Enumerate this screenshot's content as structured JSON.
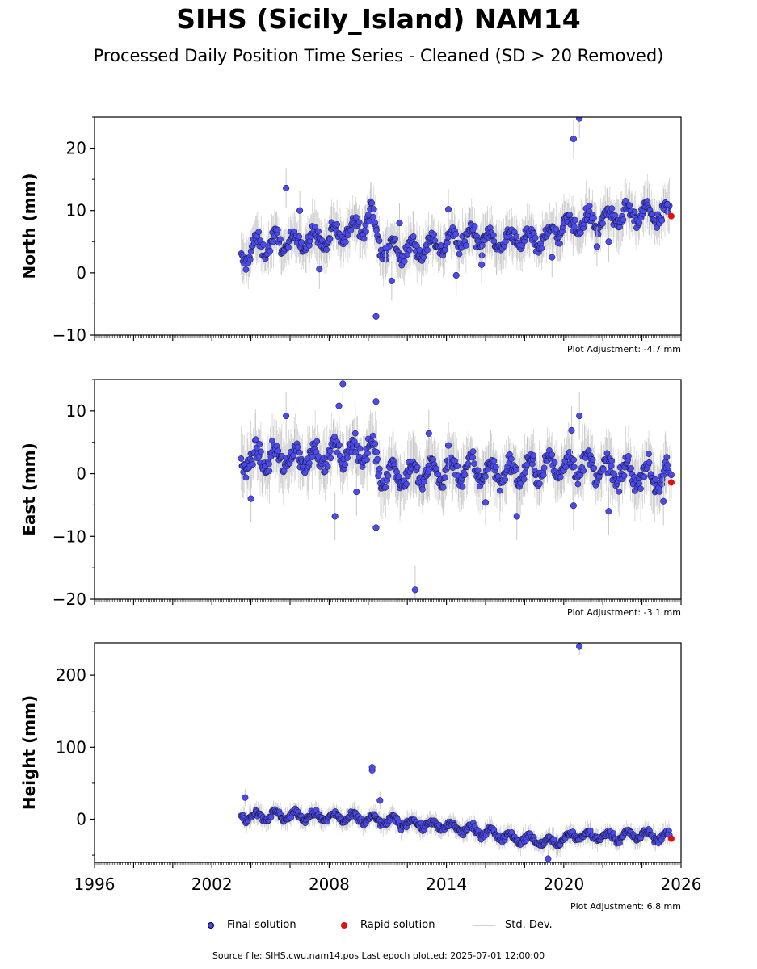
{
  "header": {
    "title": "SIHS (Sicily_Island) NAM14",
    "subtitle": "Processed Daily Position Time Series - Cleaned (SD > 20 Removed)"
  },
  "legend": {
    "final_label": "Final solution",
    "rapid_label": "Rapid solution",
    "std_label": "Std. Dev."
  },
  "footer": {
    "text": "Source file: SIHS.cwu.nam14.pos  Last epoch plotted: 2025-07-01 12:00:00"
  },
  "colors": {
    "final": "#4a4af0",
    "rapid": "#e01010",
    "std": "#c8c8c8"
  },
  "chart_data": [
    {
      "type": "scatter",
      "ylabel": "North (mm)",
      "adjustment": "Plot Adjustment: -4.7 mm",
      "xlim": [
        1996,
        2026
      ],
      "ylim": [
        -10,
        25
      ],
      "yticks": [
        -10,
        0,
        10,
        20
      ],
      "trend": [
        [
          2003.5,
          2.5
        ],
        [
          2004.5,
          4.5
        ],
        [
          2006,
          5
        ],
        [
          2008,
          5.5
        ],
        [
          2009.5,
          7.5
        ],
        [
          2010.2,
          9.5
        ],
        [
          2010.6,
          4
        ],
        [
          2012,
          3.5
        ],
        [
          2014,
          5
        ],
        [
          2015.5,
          6
        ],
        [
          2016.5,
          5
        ],
        [
          2018,
          5.5
        ],
        [
          2019,
          5.5
        ],
        [
          2020,
          7.5
        ],
        [
          2022,
          8.5
        ],
        [
          2024,
          9.5
        ],
        [
          2025.4,
          9
        ]
      ],
      "noise": 1.6,
      "outliers": [
        [
          2005.8,
          13.6
        ],
        [
          2006.5,
          10
        ],
        [
          2007.5,
          0.6
        ],
        [
          2010.4,
          -7
        ],
        [
          2010.9,
          4
        ],
        [
          2011.2,
          -1.3
        ],
        [
          2011.6,
          8
        ],
        [
          2014.1,
          10.2
        ],
        [
          2014.5,
          -0.4
        ],
        [
          2015.8,
          1.3
        ],
        [
          2019.4,
          2.5
        ],
        [
          2020.5,
          21.5
        ],
        [
          2020.8,
          24.8
        ],
        [
          2021.7,
          4.2
        ],
        [
          2022.3,
          5
        ],
        [
          2025.3,
          11
        ]
      ],
      "rapid": [
        [
          2025.5,
          9.1
        ]
      ]
    },
    {
      "type": "scatter",
      "ylabel": "East (mm)",
      "adjustment": "Plot Adjustment: -3.1 mm",
      "xlim": [
        1996,
        2026
      ],
      "ylim": [
        -20,
        15
      ],
      "yticks": [
        -20,
        -10,
        0,
        10
      ],
      "trend": [
        [
          2003.5,
          2
        ],
        [
          2005,
          2.5
        ],
        [
          2007,
          2.5
        ],
        [
          2009,
          3.5
        ],
        [
          2010.2,
          4
        ],
        [
          2010.6,
          0
        ],
        [
          2013,
          0
        ],
        [
          2015,
          1
        ],
        [
          2017,
          0
        ],
        [
          2019,
          1
        ],
        [
          2021,
          1.5
        ],
        [
          2022.5,
          0
        ],
        [
          2024,
          0
        ],
        [
          2025.4,
          -1
        ]
      ],
      "noise": 1.9,
      "outliers": [
        [
          2004,
          -4
        ],
        [
          2005.8,
          9.2
        ],
        [
          2008.5,
          10.8
        ],
        [
          2008.3,
          -6.8
        ],
        [
          2008.7,
          14.3
        ],
        [
          2009.4,
          -2.9
        ],
        [
          2010.4,
          11.5
        ],
        [
          2010.4,
          -8.6
        ],
        [
          2012.4,
          -18.5
        ],
        [
          2013.1,
          6.4
        ],
        [
          2014.1,
          4.5
        ],
        [
          2016,
          -4.6
        ],
        [
          2017.6,
          -6.8
        ],
        [
          2020.4,
          6.9
        ],
        [
          2020.5,
          -5.1
        ],
        [
          2020.8,
          9.2
        ],
        [
          2022.3,
          -6
        ],
        [
          2025.1,
          -4.4
        ],
        [
          2025.5,
          -0.2
        ]
      ],
      "rapid": [
        [
          2025.5,
          -1.4
        ]
      ]
    },
    {
      "type": "scatter",
      "ylabel": "Height (mm)",
      "adjustment": "Plot Adjustment: 6.8 mm",
      "xlim": [
        1996,
        2026
      ],
      "ylim": [
        -60,
        245
      ],
      "yticks": [
        0,
        100,
        200
      ],
      "trend": [
        [
          2003.5,
          5
        ],
        [
          2006,
          5
        ],
        [
          2008,
          3
        ],
        [
          2010,
          0
        ],
        [
          2012,
          -5
        ],
        [
          2014,
          -10
        ],
        [
          2016,
          -18
        ],
        [
          2018,
          -28
        ],
        [
          2019.5,
          -33
        ],
        [
          2020.5,
          -22
        ],
        [
          2022,
          -24
        ],
        [
          2024,
          -22
        ],
        [
          2025.4,
          -25
        ]
      ],
      "noise": 6,
      "outliers": [
        [
          2003.7,
          30
        ],
        [
          2010.2,
          68
        ],
        [
          2010.2,
          72
        ],
        [
          2010.6,
          26
        ],
        [
          2019.2,
          -55
        ],
        [
          2020.8,
          240
        ]
      ],
      "rapid": [
        [
          2025.5,
          -27
        ]
      ]
    }
  ],
  "x_axis": {
    "tick_labels": [
      "1996",
      "2002",
      "2008",
      "2014",
      "2020",
      "2026"
    ]
  }
}
